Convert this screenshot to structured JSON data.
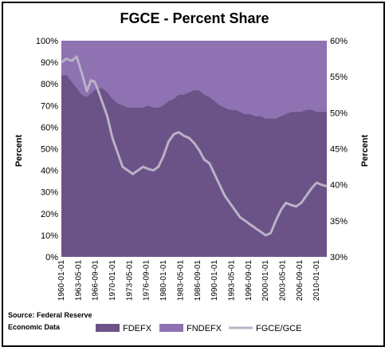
{
  "chart_data": {
    "type": "area",
    "title": "FGCE - Percent Share",
    "ylabel_left": "Percent",
    "ylabel_right": "Percent",
    "ylim_left": [
      0,
      100
    ],
    "ylim_right": [
      30,
      60
    ],
    "yticks_left": [
      "0%",
      "10%",
      "20%",
      "30%",
      "40%",
      "50%",
      "60%",
      "70%",
      "80%",
      "90%",
      "100%"
    ],
    "yticks_right": [
      "30%",
      "35%",
      "40%",
      "45%",
      "50%",
      "55%",
      "60%"
    ],
    "xticks": [
      "1960-01-01",
      "1963-05-01",
      "1966-09-01",
      "1970-01-01",
      "1973-05-01",
      "1976-09-01",
      "1980-01-01",
      "1983-05-01",
      "1986-09-01",
      "1990-01-01",
      "1993-05-01",
      "1996-09-01",
      "2000-01-01",
      "2003-05-01",
      "2006-09-01",
      "2010-01-01"
    ],
    "x_range": [
      1960.0,
      2012.0
    ],
    "grid": false,
    "legend_position": "bottom",
    "source": "Source: Federal Reserve Economic Data",
    "series": [
      {
        "name": "FDEFX",
        "kind": "stacked-area",
        "axis": "left",
        "color": "#6b5287",
        "x": [
          1960,
          1961,
          1962,
          1963,
          1964,
          1965,
          1966,
          1967,
          1968,
          1969,
          1970,
          1971,
          1972,
          1973,
          1974,
          1975,
          1976,
          1977,
          1978,
          1979,
          1980,
          1981,
          1982,
          1983,
          1984,
          1985,
          1986,
          1987,
          1988,
          1989,
          1990,
          1991,
          1992,
          1993,
          1994,
          1995,
          1996,
          1997,
          1998,
          1999,
          2000,
          2001,
          2002,
          2003,
          2004,
          2005,
          2006,
          2007,
          2008,
          2009,
          2010,
          2011,
          2012
        ],
        "values": [
          84,
          84,
          81,
          78,
          75,
          74,
          76,
          78,
          78,
          76,
          73,
          71,
          70,
          69,
          69,
          69,
          69,
          70,
          69,
          69,
          70,
          72,
          73,
          75,
          75,
          76,
          77,
          77,
          75,
          74,
          72,
          70,
          69,
          68,
          68,
          67,
          66,
          66,
          65,
          65,
          64,
          64,
          64,
          65,
          66,
          67,
          67,
          67,
          68,
          68,
          67,
          67,
          67
        ]
      },
      {
        "name": "FNDEFX",
        "kind": "stacked-area",
        "axis": "left",
        "color": "#8f72b2",
        "values_note": "remainder to 100%"
      },
      {
        "name": "FGCE/GCE",
        "kind": "line",
        "axis": "right",
        "color": "#b8b2c6",
        "x": [
          1960,
          1961,
          1962,
          1963,
          1964,
          1965,
          1965.8,
          1966.5,
          1967,
          1968,
          1969,
          1970,
          1971,
          1972,
          1973,
          1974,
          1975,
          1976,
          1977,
          1978,
          1979,
          1980,
          1981,
          1982,
          1983,
          1984,
          1985,
          1986,
          1987,
          1988,
          1989,
          1990,
          1991,
          1992,
          1993,
          1994,
          1995,
          1996,
          1997,
          1998,
          1999,
          2000,
          2001,
          2002,
          2003,
          2004,
          2005,
          2006,
          2007,
          2008,
          2009,
          2010,
          2011,
          2012
        ],
        "values": [
          57.0,
          57.5,
          57.2,
          57.8,
          55.5,
          53.0,
          54.5,
          54.3,
          53.5,
          51.5,
          49.5,
          46.5,
          44.5,
          42.5,
          42.0,
          41.5,
          42.0,
          42.5,
          42.2,
          42.0,
          42.5,
          44.0,
          46.0,
          47.0,
          47.3,
          46.8,
          46.5,
          45.8,
          44.8,
          43.5,
          43.0,
          41.5,
          40.0,
          38.5,
          37.5,
          36.5,
          35.5,
          35.0,
          34.5,
          34.0,
          33.5,
          33.0,
          33.3,
          35.0,
          36.5,
          37.5,
          37.2,
          37.0,
          37.5,
          38.5,
          39.5,
          40.3,
          40.0,
          39.8
        ]
      }
    ]
  }
}
